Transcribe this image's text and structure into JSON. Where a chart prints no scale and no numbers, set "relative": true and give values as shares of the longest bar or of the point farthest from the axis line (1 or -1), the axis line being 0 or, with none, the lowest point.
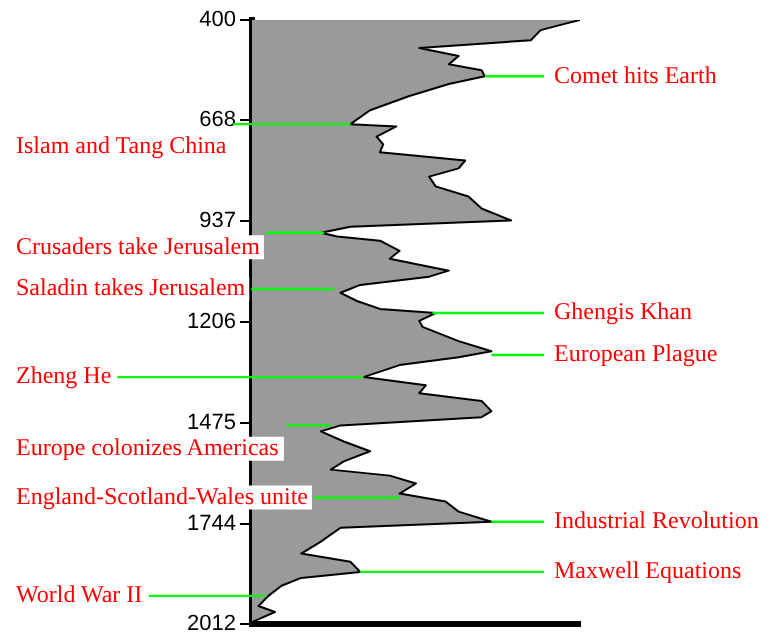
{
  "chart_data": {
    "type": "area",
    "orientation": "horizontal",
    "relative": true,
    "color": "#9a9a9a",
    "x": [
      400,
      411,
      427,
      454,
      475,
      496,
      518,
      534,
      550,
      571,
      603,
      641,
      678,
      684,
      711,
      732,
      753,
      775,
      796,
      818,
      844,
      871,
      903,
      935,
      952,
      968,
      978,
      989,
      1016,
      1037,
      1069,
      1085,
      1107,
      1128,
      1150,
      1171,
      1182,
      1203,
      1219,
      1257,
      1284,
      1300,
      1321,
      1353,
      1375,
      1396,
      1417,
      1444,
      1460,
      1482,
      1498,
      1525,
      1551,
      1578,
      1600,
      1616,
      1637,
      1664,
      1685,
      1712,
      1739,
      1755,
      1792,
      1824,
      1846,
      1873,
      1889,
      1910,
      1937,
      1964,
      1980,
      2007
    ],
    "values": [
      1,
      0.95,
      0.88,
      0.85,
      0.51,
      0.63,
      0.6,
      0.7,
      0.71,
      0.6,
      0.48,
      0.36,
      0.3,
      0.44,
      0.38,
      0.4,
      0.39,
      0.65,
      0.63,
      0.54,
      0.56,
      0.66,
      0.7,
      0.79,
      0.3,
      0.21,
      0.26,
      0.39,
      0.45,
      0.42,
      0.6,
      0.54,
      0.33,
      0.27,
      0.32,
      0.39,
      0.56,
      0.51,
      0.52,
      0.63,
      0.73,
      0.63,
      0.45,
      0.34,
      0.53,
      0.51,
      0.7,
      0.73,
      0.7,
      0.27,
      0.21,
      0.28,
      0.36,
      0.28,
      0.24,
      0.42,
      0.5,
      0.45,
      0.59,
      0.63,
      0.73,
      0.27,
      0.21,
      0.15,
      0.3,
      0.33,
      0.15,
      0.09,
      0.05,
      0.02,
      0.07,
      0
    ],
    "ylim": [
      2012,
      400
    ],
    "yticks": [
      400,
      668,
      937,
      1206,
      1475,
      1744,
      2012
    ],
    "grid": false,
    "legend": false,
    "annotations": [
      {
        "text": "Comet hits Earth",
        "x": 0.71,
        "y": 550
      },
      {
        "text": "Islam and Tang China",
        "x": 0.3,
        "y": 678
      },
      {
        "text": "Crusaders take Jerusalem",
        "x": 0.22,
        "y": 968
      },
      {
        "text": "Saladin takes Jerusalem",
        "x": 0.25,
        "y": 1118
      },
      {
        "text": "Ghengis Khan",
        "x": 0.55,
        "y": 1182
      },
      {
        "text": "European Plague",
        "x": 0.73,
        "y": 1294
      },
      {
        "text": "Zheng He",
        "x": 0.34,
        "y": 1353
      },
      {
        "text": "Europe colonizes Americas",
        "x": 0.24,
        "y": 1482
      },
      {
        "text": "England-Scotland-Wales unite",
        "x": 0.45,
        "y": 1675
      },
      {
        "text": "Industrial Revolution",
        "x": 0.73,
        "y": 1739
      },
      {
        "text": "Maxwell Equations",
        "x": 0.33,
        "y": 1873
      },
      {
        "text": "World War II",
        "x": 0.04,
        "y": 1937
      }
    ]
  }
}
